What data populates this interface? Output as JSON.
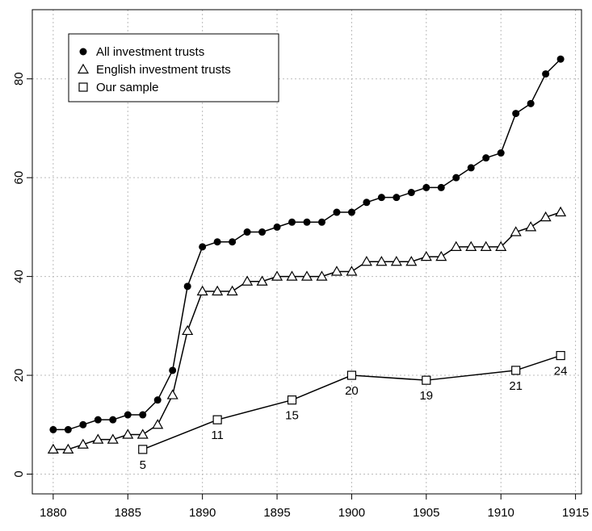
{
  "chart_data": {
    "type": "line",
    "xlim": [
      1878.6,
      1915.4
    ],
    "ylim": [
      -4,
      94
    ],
    "xticks": [
      1880,
      1885,
      1890,
      1895,
      1900,
      1905,
      1910,
      1915
    ],
    "yticks": [
      0,
      20,
      40,
      60,
      80
    ],
    "grid": true,
    "legend": "top-left",
    "series": [
      {
        "name": "All investment trusts",
        "color": "#000000",
        "marker": "circle",
        "x": [
          1880,
          1881,
          1882,
          1883,
          1884,
          1885,
          1886,
          1887,
          1888,
          1889,
          1890,
          1891,
          1892,
          1893,
          1894,
          1895,
          1896,
          1897,
          1898,
          1899,
          1900,
          1901,
          1902,
          1903,
          1904,
          1905,
          1906,
          1907,
          1908,
          1909,
          1910,
          1911,
          1912,
          1913,
          1914
        ],
        "values": [
          9,
          9,
          10,
          11,
          11,
          12,
          12,
          15,
          21,
          38,
          46,
          47,
          47,
          49,
          49,
          50,
          51,
          51,
          51,
          53,
          53,
          55,
          56,
          56,
          57,
          58,
          58,
          60,
          62,
          64,
          65,
          73,
          75,
          81,
          84
        ]
      },
      {
        "name": "English investment trusts",
        "color": "#000000",
        "marker": "triangle",
        "x": [
          1880,
          1881,
          1882,
          1883,
          1884,
          1885,
          1886,
          1887,
          1888,
          1889,
          1890,
          1891,
          1892,
          1893,
          1894,
          1895,
          1896,
          1897,
          1898,
          1899,
          1900,
          1901,
          1902,
          1903,
          1904,
          1905,
          1906,
          1907,
          1908,
          1909,
          1910,
          1911,
          1912,
          1913,
          1914
        ],
        "values": [
          5,
          5,
          6,
          7,
          7,
          8,
          8,
          10,
          16,
          29,
          37,
          37,
          37,
          39,
          39,
          40,
          40,
          40,
          40,
          41,
          41,
          43,
          43,
          43,
          43,
          44,
          44,
          46,
          46,
          46,
          46,
          49,
          50,
          52,
          53
        ]
      },
      {
        "name": "Our sample",
        "color": "#000000",
        "marker": "square",
        "show_value_labels": true,
        "x": [
          1886,
          1891,
          1896,
          1900,
          1905,
          1911,
          1914
        ],
        "values": [
          5,
          11,
          15,
          20,
          19,
          21,
          24
        ]
      }
    ]
  }
}
